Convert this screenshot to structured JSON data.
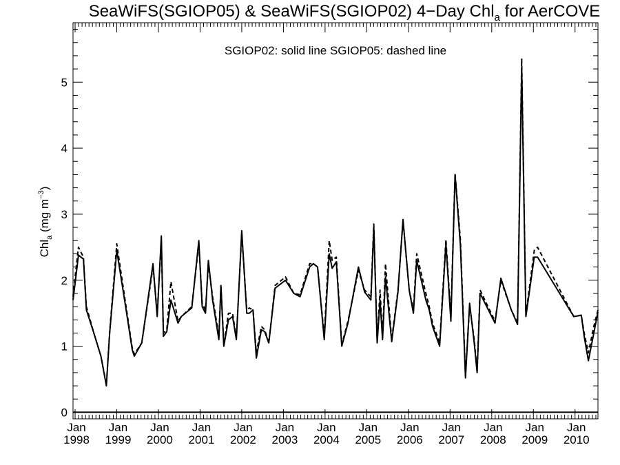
{
  "chart_data": {
    "type": "line",
    "title_main": "SeaWiFS(SGIOP05) & SeaWiFS(SGIOP02) 4−Day Chl",
    "title_sub": "a",
    "title_tail": " for AerCOVE",
    "legend_note": "SGIOP02: solid line   SGIOP05: dashed line",
    "ylabel_main": "Chl",
    "ylabel_sub": "a",
    "ylabel_unit": " (mg m",
    "ylabel_sup": "−3",
    "ylabel_close": ")",
    "x_tick_month": "Jan",
    "x_tick_years": [
      "1998",
      "1999",
      "2000",
      "2001",
      "2002",
      "2003",
      "2004",
      "2005",
      "2006",
      "2007",
      "2008",
      "2009",
      "2010"
    ],
    "x_tick_positions": [
      1998,
      1999,
      2000,
      2001,
      2002,
      2003,
      2004,
      2005,
      2006,
      2007,
      2008,
      2009,
      2010
    ],
    "y_ticks": [
      0,
      1,
      2,
      3,
      4,
      5
    ],
    "y_tick_labels": [
      "0",
      "1",
      "2",
      "3",
      "4",
      "5"
    ],
    "xlim": [
      1997.95,
      2010.55
    ],
    "ylim": [
      -0.1,
      5.9
    ],
    "zero_line": true,
    "series": [
      {
        "name": "SGIOP02",
        "style": "solid",
        "x": [
          1997.95,
          1998.0,
          1998.08,
          1998.2,
          1998.27,
          1998.45,
          1998.62,
          1998.75,
          1998.83,
          1999.0,
          1999.2,
          1999.37,
          1999.42,
          1999.6,
          1999.87,
          1999.97,
          2000.07,
          2000.12,
          2000.2,
          2000.3,
          2000.47,
          2000.55,
          2000.8,
          2000.97,
          2001.05,
          2001.13,
          2001.2,
          2001.3,
          2001.45,
          2001.5,
          2001.57,
          2001.68,
          2001.78,
          2001.87,
          2002.0,
          2002.12,
          2002.18,
          2002.27,
          2002.35,
          2002.47,
          2002.55,
          2002.65,
          2002.8,
          2003.05,
          2003.25,
          2003.4,
          2003.63,
          2003.72,
          2003.82,
          2003.98,
          2004.1,
          2004.17,
          2004.27,
          2004.4,
          2004.55,
          2004.8,
          2004.95,
          2005.1,
          2005.17,
          2005.25,
          2005.32,
          2005.38,
          2005.45,
          2005.6,
          2005.75,
          2005.87,
          2006.02,
          2006.12,
          2006.2,
          2006.42,
          2006.5,
          2006.58,
          2006.75,
          2006.9,
          2007.02,
          2007.12,
          2007.25,
          2007.37,
          2007.47,
          2007.58,
          2007.65,
          2007.72,
          2008.08,
          2008.22,
          2008.47,
          2008.62,
          2008.72,
          2008.82,
          2009.02,
          2009.1,
          2009.97,
          2010.07,
          2010.15,
          2010.22,
          2010.32,
          2010.45,
          2010.55
        ],
        "y": [
          1.7,
          1.95,
          2.38,
          2.32,
          1.55,
          1.2,
          0.85,
          0.4,
          1.2,
          2.45,
          1.65,
          0.95,
          0.85,
          1.05,
          2.25,
          1.45,
          2.67,
          1.15,
          1.22,
          1.7,
          1.35,
          1.45,
          1.58,
          2.6,
          1.6,
          1.5,
          2.3,
          1.7,
          1.1,
          1.92,
          1.0,
          1.4,
          1.45,
          1.1,
          2.75,
          1.5,
          1.5,
          1.55,
          0.82,
          1.25,
          1.22,
          1.05,
          1.88,
          2.0,
          1.8,
          1.75,
          2.2,
          2.25,
          2.2,
          1.1,
          2.4,
          2.18,
          2.28,
          1.0,
          1.35,
          2.2,
          1.82,
          1.7,
          2.8,
          1.05,
          1.7,
          1.1,
          2.05,
          1.07,
          1.82,
          2.92,
          1.85,
          1.5,
          2.3,
          1.7,
          1.55,
          1.3,
          1.0,
          2.55,
          1.38,
          3.6,
          2.52,
          0.52,
          1.65,
          1.05,
          0.6,
          1.8,
          1.35,
          2.03,
          1.55,
          1.33,
          5.22,
          1.45,
          2.35,
          2.35,
          1.45,
          1.46,
          1.47,
          1.15,
          0.78,
          1.2,
          1.52
        ]
      },
      {
        "name": "SGIOP05",
        "style": "dashed",
        "x": [
          1997.95,
          1998.0,
          1998.08,
          1998.2,
          1998.27,
          1998.45,
          1998.62,
          1998.75,
          1998.83,
          1999.0,
          1999.2,
          1999.37,
          1999.42,
          1999.6,
          1999.87,
          1999.97,
          2000.07,
          2000.12,
          2000.2,
          2000.3,
          2000.47,
          2000.55,
          2000.8,
          2000.97,
          2001.05,
          2001.13,
          2001.2,
          2001.3,
          2001.45,
          2001.5,
          2001.57,
          2001.68,
          2001.78,
          2001.87,
          2002.0,
          2002.12,
          2002.18,
          2002.27,
          2002.35,
          2002.47,
          2002.55,
          2002.65,
          2002.8,
          2003.05,
          2003.25,
          2003.4,
          2003.63,
          2003.72,
          2003.82,
          2003.98,
          2004.1,
          2004.17,
          2004.27,
          2004.4,
          2004.55,
          2004.8,
          2004.95,
          2005.1,
          2005.17,
          2005.25,
          2005.32,
          2005.38,
          2005.45,
          2005.6,
          2005.75,
          2005.87,
          2006.02,
          2006.12,
          2006.2,
          2006.42,
          2006.5,
          2006.58,
          2006.75,
          2006.9,
          2007.02,
          2007.12,
          2007.25,
          2007.37,
          2007.47,
          2007.58,
          2007.65,
          2007.72,
          2008.08,
          2008.22,
          2008.47,
          2008.62,
          2008.72,
          2008.82,
          2009.02,
          2009.1,
          2009.97,
          2010.07,
          2010.15,
          2010.22,
          2010.32,
          2010.45,
          2010.55
        ],
        "y": [
          1.75,
          2.05,
          2.5,
          2.35,
          1.6,
          1.2,
          0.85,
          0.42,
          1.22,
          2.55,
          1.7,
          0.98,
          0.88,
          1.05,
          2.2,
          1.5,
          2.6,
          1.2,
          1.25,
          1.98,
          1.38,
          1.45,
          1.6,
          2.55,
          1.65,
          1.55,
          2.25,
          1.75,
          1.15,
          1.9,
          1.02,
          1.5,
          1.5,
          1.12,
          2.7,
          1.55,
          1.58,
          1.55,
          0.9,
          1.3,
          1.25,
          1.05,
          1.92,
          2.05,
          1.8,
          1.78,
          2.25,
          2.25,
          2.2,
          1.15,
          2.6,
          2.3,
          2.35,
          1.02,
          1.38,
          2.15,
          1.85,
          1.75,
          2.85,
          1.08,
          1.85,
          1.15,
          2.25,
          1.1,
          1.85,
          2.9,
          1.85,
          1.55,
          2.4,
          1.8,
          1.6,
          1.35,
          1.05,
          2.62,
          1.45,
          3.62,
          2.6,
          0.55,
          1.62,
          1.1,
          0.62,
          1.85,
          1.38,
          2.0,
          1.55,
          1.35,
          5.35,
          1.48,
          2.45,
          2.5,
          1.45,
          1.46,
          1.47,
          1.2,
          0.9,
          1.3,
          1.55
        ]
      }
    ]
  }
}
